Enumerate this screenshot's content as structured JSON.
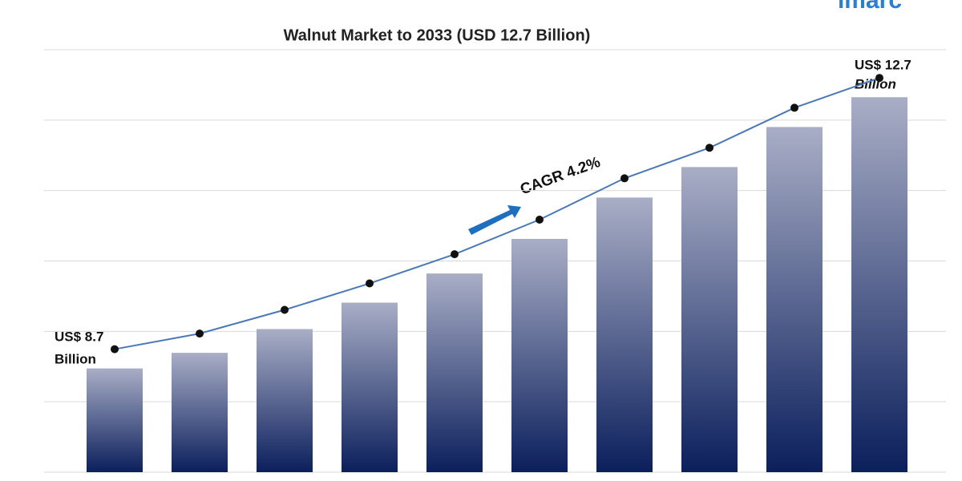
{
  "chart_data": {
    "type": "bar",
    "title": "Walnut Market to 2033 (USD 12.7 Billion)",
    "logo": "imarc",
    "annotations": {
      "start": [
        "US$ 8.7",
        "Billion"
      ],
      "end": [
        "US$ 12.7",
        "Billion"
      ],
      "cagr": "CAGR 4.2%"
    },
    "categories": [
      null,
      null,
      null,
      null,
      null,
      null,
      null,
      null,
      null,
      null
    ],
    "values": [
      8.7,
      8.93,
      9.28,
      9.67,
      10.1,
      10.61,
      11.22,
      11.67,
      12.26,
      12.7
    ],
    "ylim": [
      7.17,
      13.4
    ],
    "grid": true,
    "color_top": "#a9aec6",
    "color_bottom": "#0b1f5c",
    "line_color": "#4a78b8"
  }
}
